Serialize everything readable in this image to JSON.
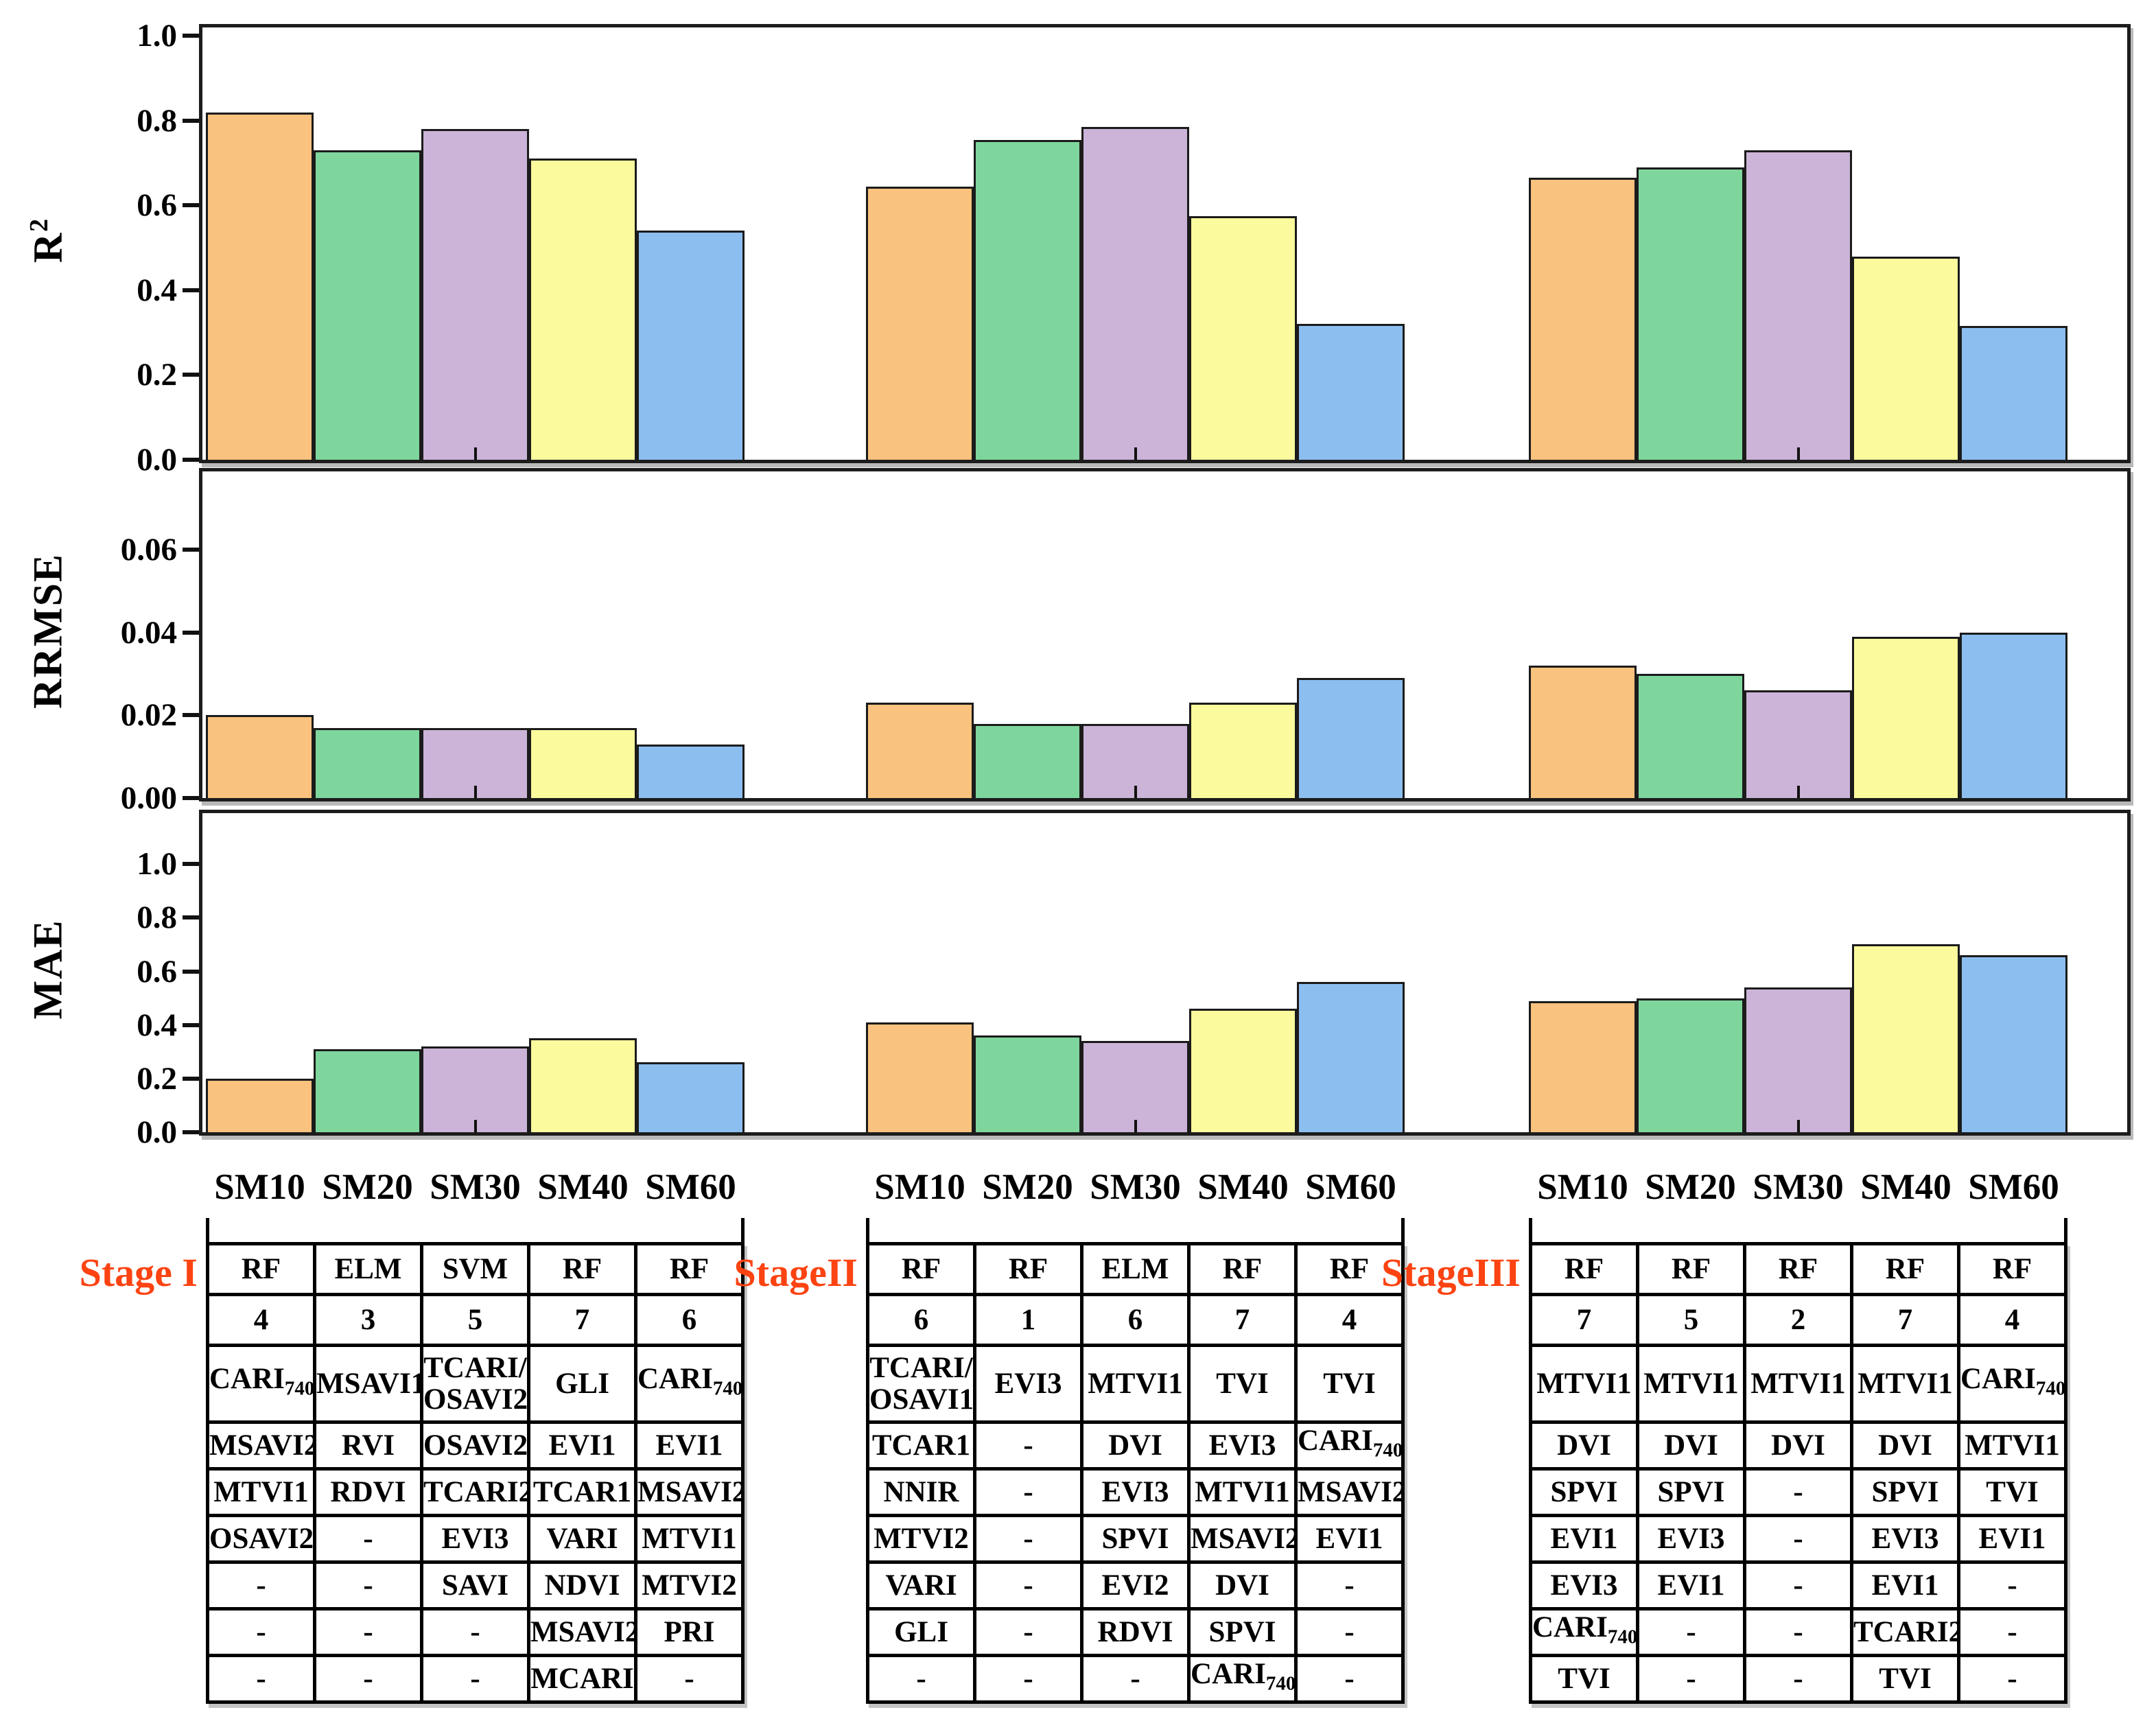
{
  "figure": {
    "background": "#ffffff",
    "bar_colors_note": "fill colors per soil-moisture depth series",
    "stage_label_color": "#fc4312"
  },
  "legend": {
    "items": [
      {
        "label": "SM10",
        "color": "#F9C27E"
      },
      {
        "label": "SM20",
        "color": "#7ED69D"
      },
      {
        "label": "SM30",
        "color": "#CBB4D8"
      },
      {
        "label": "SM40",
        "color": "#FBFB9E"
      },
      {
        "label": "SM60",
        "color": "#8CBFF0"
      }
    ]
  },
  "chart_data": {
    "type": "bar",
    "categories": [
      "SM10",
      "SM20",
      "SM30",
      "SM40",
      "SM60"
    ],
    "group_labels": [
      "Stage I",
      "StageII",
      "StageIII"
    ],
    "legend_position": "top-center-right inside first panel",
    "grid": false,
    "panels": [
      {
        "ylabel": "R^2",
        "ylim": [
          0,
          1.02
        ],
        "ticks": [
          {
            "v": 1.0,
            "t": "1.0"
          },
          {
            "v": 0.8,
            "t": "0.8"
          },
          {
            "v": 0.6,
            "t": "0.6"
          },
          {
            "v": 0.4,
            "t": "0.4"
          },
          {
            "v": 0.2,
            "t": "0.2"
          },
          {
            "v": 0.0,
            "t": "0.0"
          }
        ],
        "series_by_group": [
          [
            0.82,
            0.73,
            0.78,
            0.71,
            0.54
          ],
          [
            0.645,
            0.755,
            0.785,
            0.575,
            0.32
          ],
          [
            0.665,
            0.69,
            0.73,
            0.48,
            0.315
          ]
        ]
      },
      {
        "ylabel": "RRMSE",
        "ylim": [
          0,
          0.079
        ],
        "ticks": [
          {
            "v": 0.06,
            "t": "0.06"
          },
          {
            "v": 0.04,
            "t": "0.04"
          },
          {
            "v": 0.02,
            "t": "0.02"
          },
          {
            "v": 0.0,
            "t": "0.00"
          }
        ],
        "series_by_group": [
          [
            0.02,
            0.017,
            0.017,
            0.017,
            0.013
          ],
          [
            0.023,
            0.018,
            0.018,
            0.023,
            0.029
          ],
          [
            0.032,
            0.03,
            0.026,
            0.039,
            0.04
          ]
        ]
      },
      {
        "ylabel": "MAE",
        "ylim": [
          0,
          1.19
        ],
        "ticks": [
          {
            "v": 1.0,
            "t": "1.0"
          },
          {
            "v": 0.8,
            "t": "0.8"
          },
          {
            "v": 0.6,
            "t": "0.6"
          },
          {
            "v": 0.4,
            "t": "0.4"
          },
          {
            "v": 0.2,
            "t": "0.2"
          },
          {
            "v": 0.0,
            "t": "0.0"
          }
        ],
        "series_by_group": [
          [
            0.2,
            0.31,
            0.32,
            0.35,
            0.26
          ],
          [
            0.41,
            0.36,
            0.34,
            0.46,
            0.56
          ],
          [
            0.49,
            0.5,
            0.54,
            0.7,
            0.66
          ]
        ]
      }
    ]
  },
  "tables": {
    "column_headers": [
      "SM10",
      "SM20",
      "SM30",
      "SM40",
      "SM60"
    ],
    "stages": [
      {
        "label": "Stage I",
        "rows": [
          [
            "RF",
            "ELM",
            "SVM",
            "RF",
            "RF"
          ],
          [
            "4",
            "3",
            "5",
            "7",
            "6"
          ],
          [
            "CARI~740",
            "MSAVI1",
            "TCARI/\nOSAVI2",
            "GLI",
            "CARI~740"
          ],
          [
            "MSAVI2",
            "RVI",
            "OSAVI2",
            "EVI1",
            "EVI1"
          ],
          [
            "MTVI1",
            "RDVI",
            "TCARI2",
            "TCAR1",
            "MSAVI2"
          ],
          [
            "OSAVI2",
            "-",
            "EVI3",
            "VARI",
            "MTVI1"
          ],
          [
            "-",
            "-",
            "SAVI",
            "NDVI",
            "MTVI2"
          ],
          [
            "-",
            "-",
            "-",
            "MSAVI2",
            "PRI"
          ],
          [
            "-",
            "-",
            "-",
            "MCARI",
            "-"
          ]
        ]
      },
      {
        "label": "StageII",
        "rows": [
          [
            "RF",
            "RF",
            "ELM",
            "RF",
            "RF"
          ],
          [
            "6",
            "1",
            "6",
            "7",
            "4"
          ],
          [
            "TCARI/\nOSAVI1",
            "EVI3",
            "MTVI1",
            "TVI",
            "TVI"
          ],
          [
            "TCAR1",
            "-",
            "DVI",
            "EVI3",
            "CARI~740"
          ],
          [
            "NNIR",
            "-",
            "EVI3",
            "MTVI1",
            "MSAVI2"
          ],
          [
            "MTVI2",
            "-",
            "SPVI",
            "MSAVI2",
            "EVI1"
          ],
          [
            "VARI",
            "-",
            "EVI2",
            "DVI",
            "-"
          ],
          [
            "GLI",
            "-",
            "RDVI",
            "SPVI",
            "-"
          ],
          [
            "-",
            "-",
            "-",
            "CARI~740",
            "-"
          ]
        ]
      },
      {
        "label": "StageIII",
        "rows": [
          [
            "RF",
            "RF",
            "RF",
            "RF",
            "RF"
          ],
          [
            "7",
            "5",
            "2",
            "7",
            "4"
          ],
          [
            "MTVI1",
            "MTVI1",
            "MTVI1",
            "MTVI1",
            "CARI~740"
          ],
          [
            "DVI",
            "DVI",
            "DVI",
            "DVI",
            "MTVI1"
          ],
          [
            "SPVI",
            "SPVI",
            "-",
            "SPVI",
            "TVI"
          ],
          [
            "EVI1",
            "EVI3",
            "-",
            "EVI3",
            "EVI1"
          ],
          [
            "EVI3",
            "EVI1",
            "-",
            "EVI1",
            "-"
          ],
          [
            "CARI~740",
            "-",
            "-",
            "TCARI2",
            "-"
          ],
          [
            "TVI",
            "-",
            "-",
            "TVI",
            "-"
          ]
        ]
      }
    ]
  }
}
